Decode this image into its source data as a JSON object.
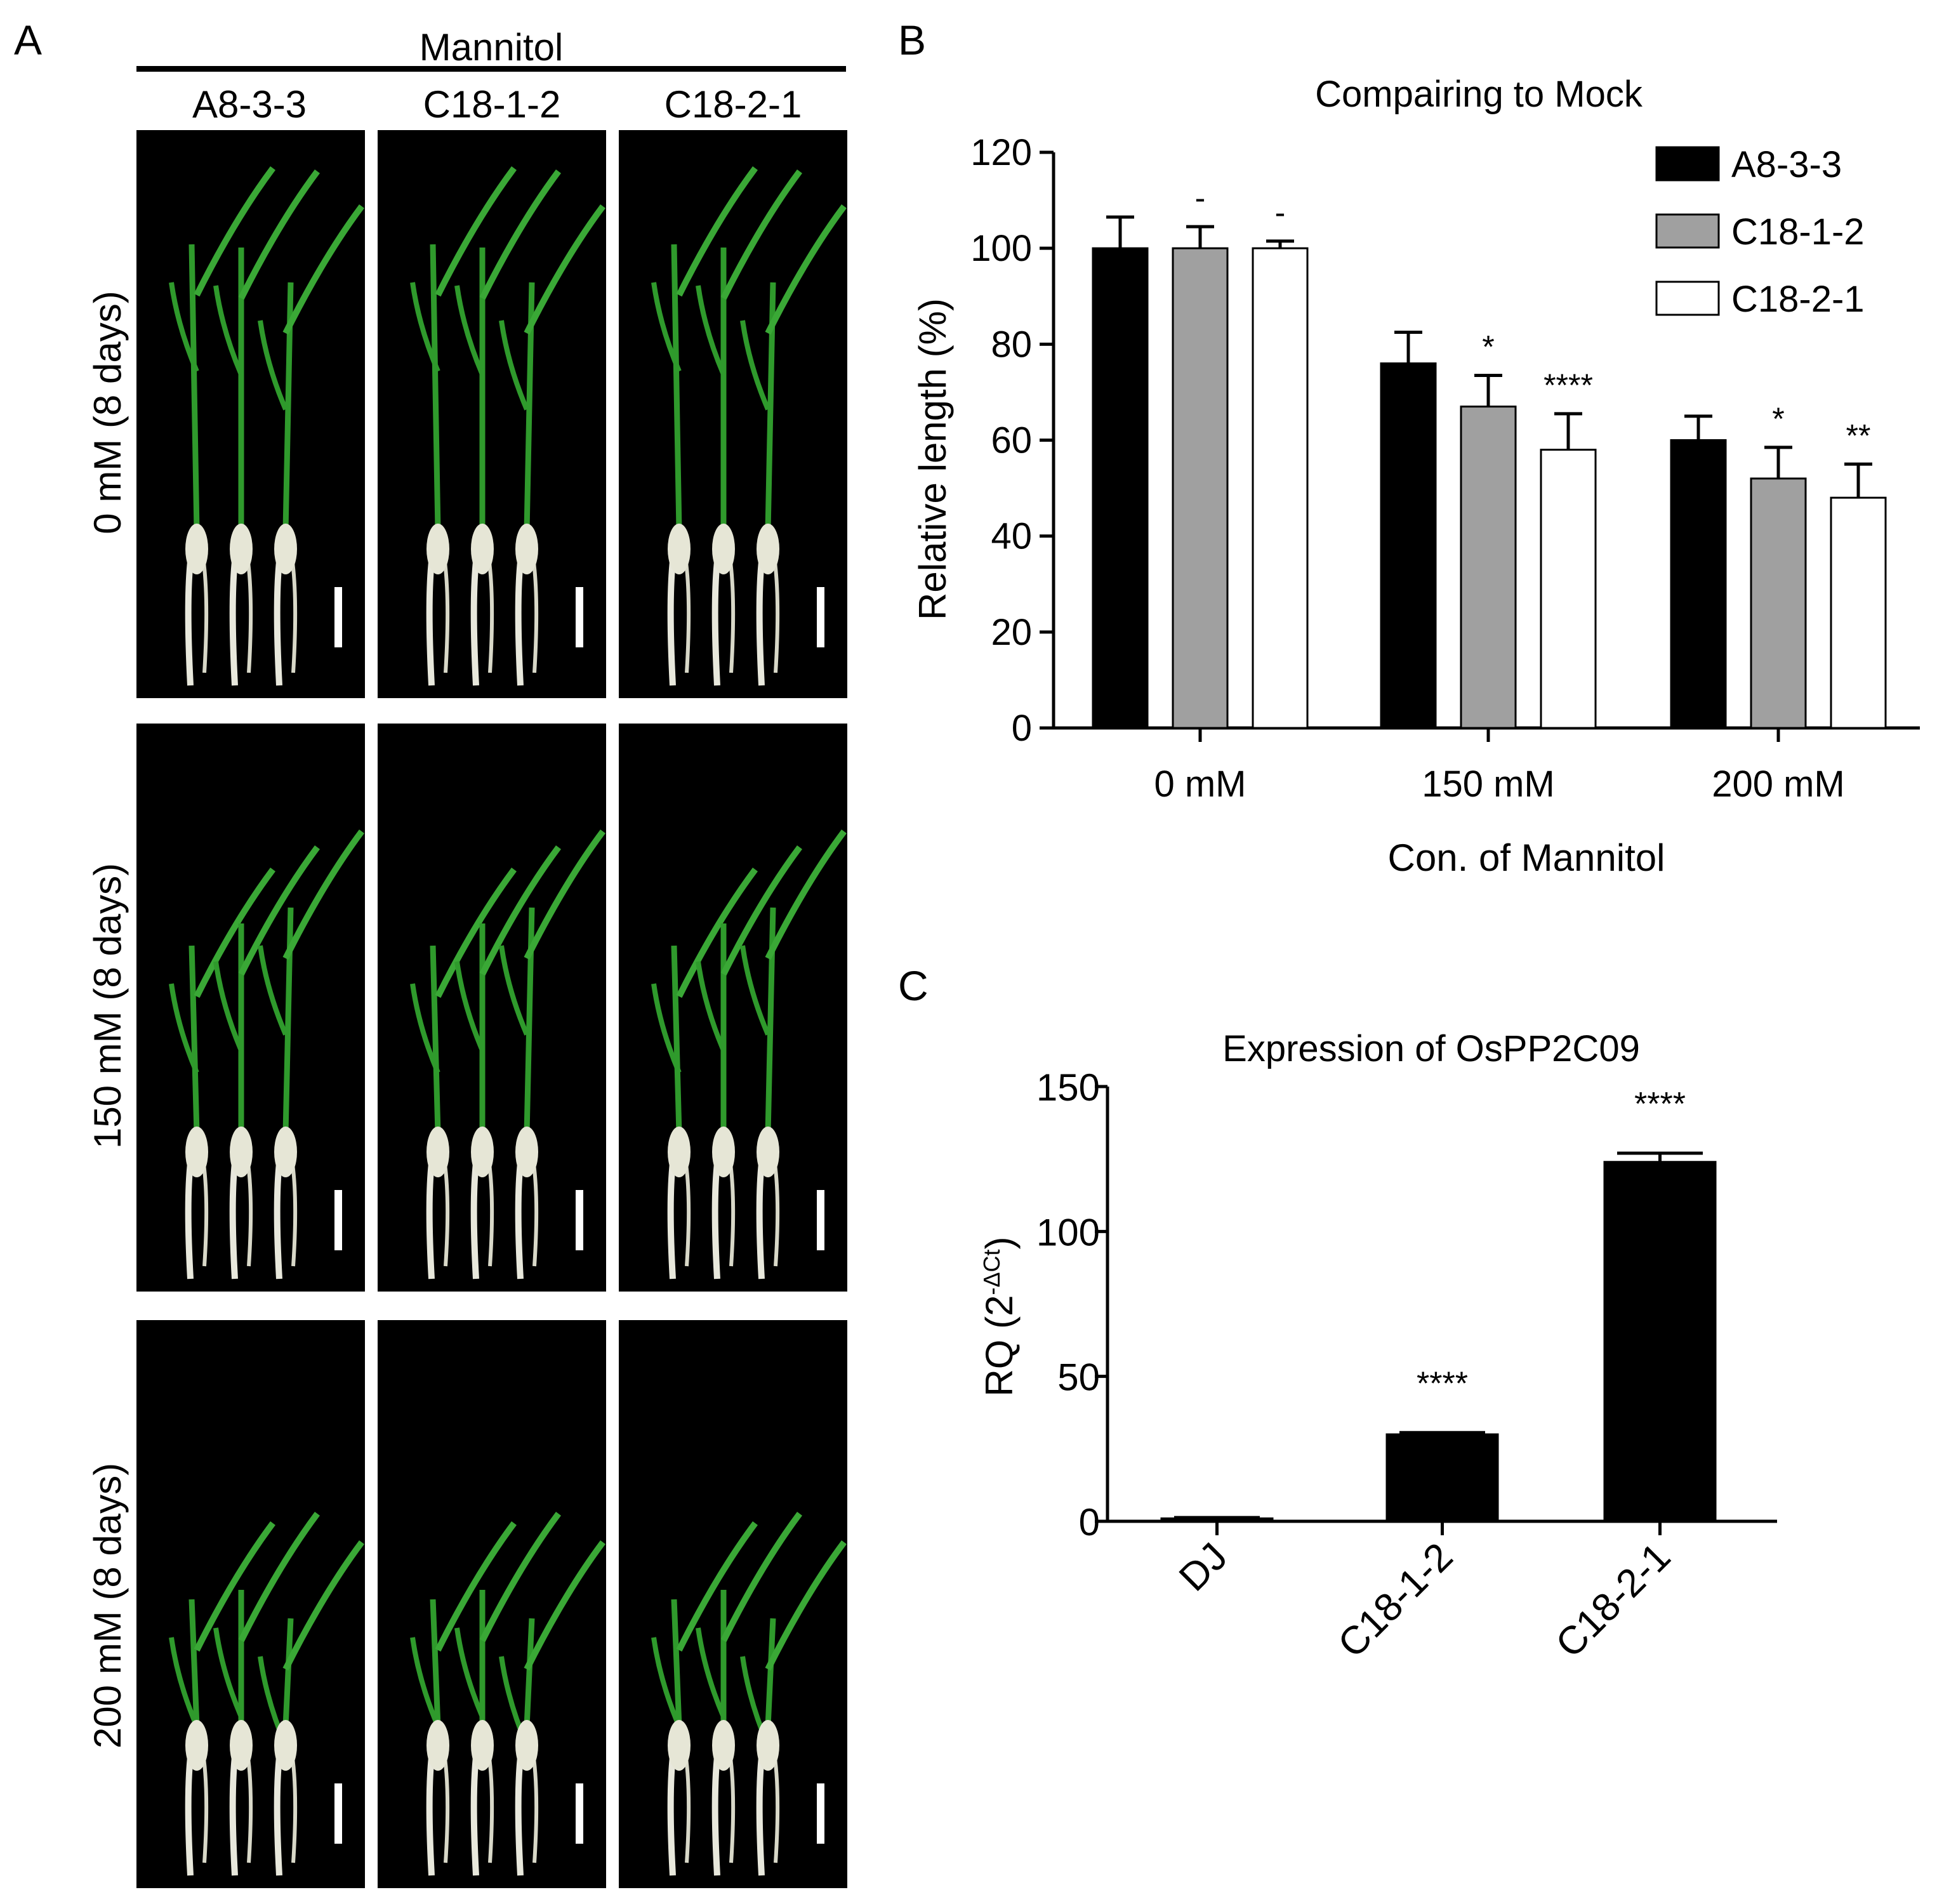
{
  "panel_a": {
    "letter": "A",
    "group_label": "Mannitol",
    "columns": [
      "A8-3-3",
      "C18-1-2",
      "C18-2-1"
    ],
    "rows": [
      "0 mM (8 days)",
      "150 mM (8 days)",
      "200 mM (8 days)"
    ]
  },
  "panel_b": {
    "letter": "B"
  },
  "panel_c": {
    "letter": "C"
  },
  "chart_data": [
    {
      "type": "bar",
      "title": "Compairing to Mock",
      "xlabel": "Con. of Mannitol",
      "ylabel": "Relative length (%)",
      "ylim": [
        0,
        120
      ],
      "yticks": [
        0,
        20,
        40,
        60,
        80,
        100,
        120
      ],
      "categories": [
        "0 mM",
        "150 mM",
        "200 mM"
      ],
      "legend_position": "top-right",
      "series": [
        {
          "name": "A8-3-3",
          "color": "#000000",
          "values": [
            100,
            76,
            60
          ],
          "errors": [
            6.5,
            6.5,
            5
          ],
          "annotations": [
            "",
            "",
            ""
          ]
        },
        {
          "name": "C18-1-2",
          "color": "#a0a0a0",
          "values": [
            100,
            67,
            52
          ],
          "errors": [
            4.5,
            6.5,
            6.5
          ],
          "annotations": [
            "-",
            "*",
            "*"
          ]
        },
        {
          "name": "C18-2-1",
          "color": "#ffffff",
          "values": [
            100,
            58,
            48
          ],
          "errors": [
            1.5,
            7.5,
            7
          ],
          "annotations": [
            "-",
            "****",
            "**"
          ]
        }
      ]
    },
    {
      "type": "bar",
      "title": "Expression of OsPP2C09",
      "xlabel": "",
      "ylabel": "RQ (2",
      "ylabel_superscript": "-ΔCt",
      "ylabel_close": ")",
      "ylim": [
        0,
        150
      ],
      "yticks": [
        0,
        50,
        100,
        150
      ],
      "categories": [
        "DJ",
        "C18-1-2",
        "C18-2-1"
      ],
      "series": [
        {
          "color": "#000000",
          "values": [
            1,
            30,
            124
          ],
          "errors": [
            0.3,
            0.6,
            3
          ],
          "annotations": [
            "",
            "****",
            "****"
          ]
        }
      ]
    }
  ]
}
